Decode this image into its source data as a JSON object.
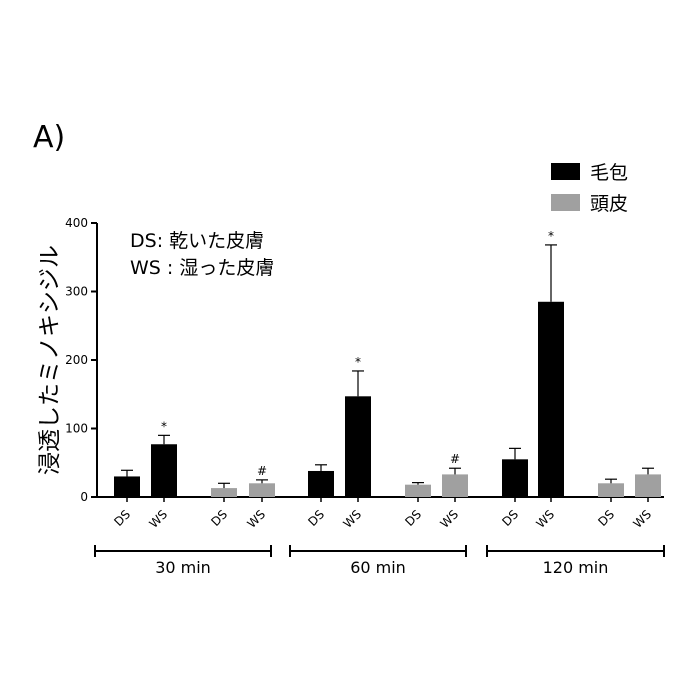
{
  "panel_label": "A)",
  "chart_data": {
    "type": "bar",
    "ylabel": "浸透したミノキシジル",
    "ylim": [
      0,
      400
    ],
    "yticks": [
      0,
      100,
      200,
      300,
      400
    ],
    "annotation_lines": [
      "DS: 乾いた皮膚",
      "WS : 湿った皮膚"
    ],
    "legend_position": "top-right",
    "series": [
      {
        "name": "毛包",
        "color": "#000000"
      },
      {
        "name": "頭皮",
        "color": "#a0a0a0"
      }
    ],
    "groups": [
      {
        "label": "30 min",
        "bars": [
          {
            "category": "DS",
            "series": "毛包",
            "value": 30,
            "error": 9,
            "mark": ""
          },
          {
            "category": "WS",
            "series": "毛包",
            "value": 77,
            "error": 13,
            "mark": "*"
          },
          {
            "category": "DS",
            "series": "頭皮",
            "value": 13,
            "error": 7,
            "mark": ""
          },
          {
            "category": "WS",
            "series": "頭皮",
            "value": 20,
            "error": 5,
            "mark": "#"
          }
        ]
      },
      {
        "label": "60 min",
        "bars": [
          {
            "category": "DS",
            "series": "毛包",
            "value": 38,
            "error": 9,
            "mark": ""
          },
          {
            "category": "WS",
            "series": "毛包",
            "value": 147,
            "error": 37,
            "mark": "*"
          },
          {
            "category": "DS",
            "series": "頭皮",
            "value": 18,
            "error": 3,
            "mark": ""
          },
          {
            "category": "WS",
            "series": "頭皮",
            "value": 33,
            "error": 9,
            "mark": "#"
          }
        ]
      },
      {
        "label": "120 min",
        "bars": [
          {
            "category": "DS",
            "series": "毛包",
            "value": 55,
            "error": 16,
            "mark": ""
          },
          {
            "category": "WS",
            "series": "毛包",
            "value": 285,
            "error": 83,
            "mark": "*"
          },
          {
            "category": "DS",
            "series": "頭皮",
            "value": 20,
            "error": 6,
            "mark": ""
          },
          {
            "category": "WS",
            "series": "頭皮",
            "value": 33,
            "error": 9,
            "mark": ""
          }
        ]
      }
    ]
  }
}
